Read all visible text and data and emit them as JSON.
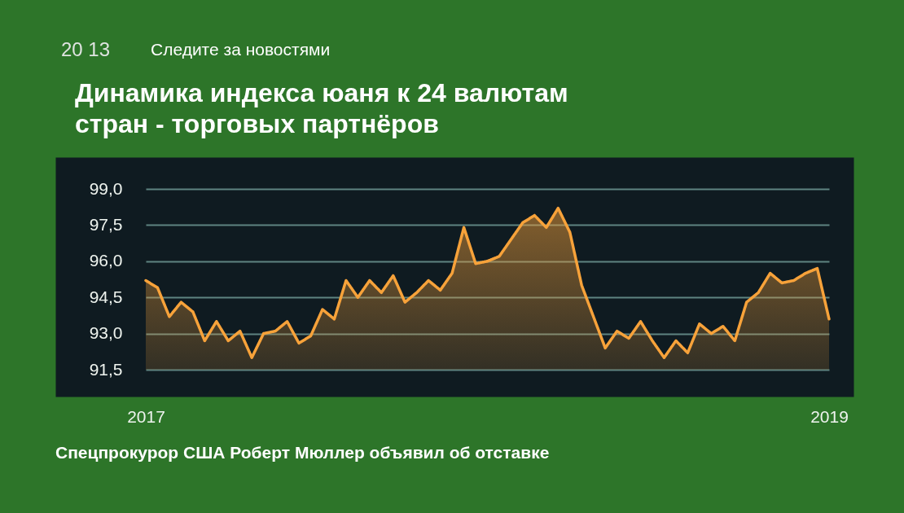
{
  "chart_data": {
    "type": "area",
    "title": "Динамика индекса юаня к 24 валютам стран - торговых партнёров",
    "categories": [
      "2017",
      null,
      null,
      null,
      null,
      null,
      null,
      null,
      null,
      null,
      null,
      null,
      null,
      null,
      null,
      null,
      null,
      null,
      null,
      null,
      null,
      null,
      null,
      null,
      null,
      null,
      null,
      null,
      null,
      null,
      null,
      null,
      null,
      null,
      null,
      null,
      null,
      null,
      null,
      null,
      null,
      null,
      null,
      null,
      null,
      null,
      null,
      null,
      null,
      null,
      null,
      null,
      null,
      null,
      null,
      null,
      null,
      null,
      "2019"
    ],
    "values": [
      95.2,
      94.9,
      93.7,
      94.3,
      93.9,
      92.7,
      93.5,
      92.7,
      93.1,
      92.0,
      93.0,
      93.1,
      93.5,
      92.6,
      92.9,
      94.0,
      93.6,
      95.2,
      94.5,
      95.2,
      94.7,
      95.4,
      94.3,
      94.7,
      95.2,
      94.8,
      95.5,
      97.4,
      95.9,
      96.0,
      96.2,
      96.9,
      97.6,
      97.9,
      97.4,
      98.2,
      97.2,
      95.0,
      93.7,
      92.4,
      93.1,
      92.8,
      93.5,
      92.7,
      92.0,
      92.7,
      92.2,
      93.4,
      93.0,
      93.3,
      92.7,
      94.3,
      94.7,
      95.5,
      95.1,
      95.2,
      95.5,
      95.7,
      93.6
    ],
    "color": "#f7a23a",
    "ylim": [
      91.5,
      99.0
    ],
    "yticks": [
      {
        "value": 91.5,
        "label": "91,5"
      },
      {
        "value": 93.0,
        "label": "93,0"
      },
      {
        "value": 94.5,
        "label": "94,5"
      },
      {
        "value": 96.0,
        "label": "96,0"
      },
      {
        "value": 97.5,
        "label": "97,5"
      },
      {
        "value": 99.0,
        "label": "99,0"
      }
    ],
    "grid": "y",
    "annotations": [
      "20 13",
      "Следите за новостями",
      "Спецпрокурор США Роберт Мюллер объявил об отставке"
    ]
  }
}
